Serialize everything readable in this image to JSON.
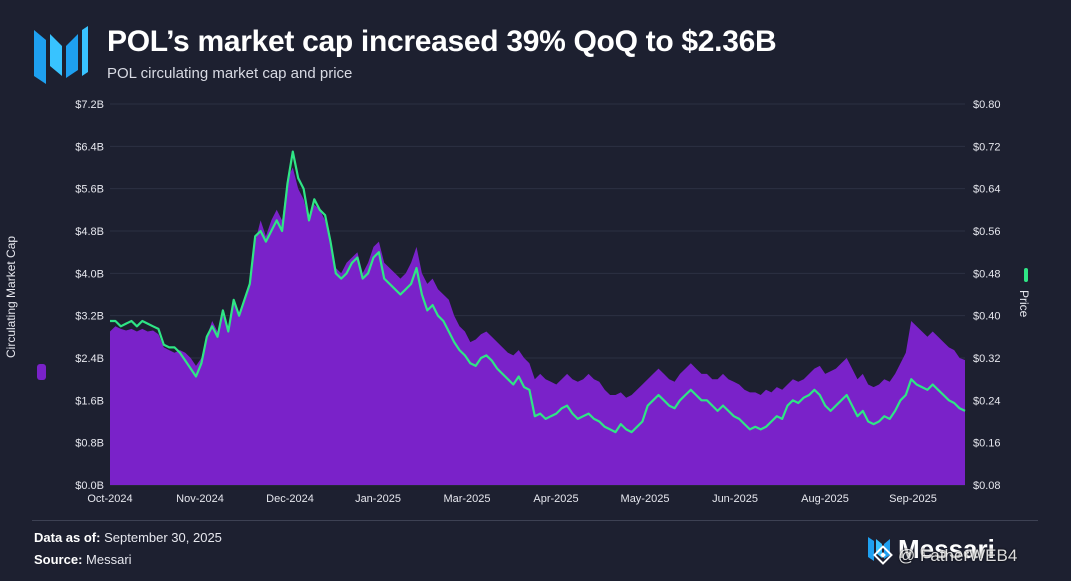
{
  "header": {
    "title": "POL’s market cap increased 39% QoQ to $2.36B",
    "subtitle": "POL circulating market cap and price"
  },
  "colors": {
    "background": "#1d2030",
    "market_cap_fill": "#7a22c9",
    "price_line": "#2fe585",
    "logo_blue": "#1ea0f0"
  },
  "chart_data": {
    "type": "area",
    "title": "POL’s market cap increased 39% QoQ to $2.36B",
    "subtitle": "POL circulating market cap and price",
    "ylabel_left": "Circulating Market Cap",
    "ylabel_right": "Price",
    "ylim_left": [
      0,
      7.2
    ],
    "ylim_right": [
      0.08,
      0.8
    ],
    "yticks_left": [
      "$0.0B",
      "$0.8B",
      "$1.6B",
      "$2.4B",
      "$3.2B",
      "$4.0B",
      "$4.8B",
      "$5.6B",
      "$6.4B",
      "$7.2B"
    ],
    "yticks_right": [
      "$0.08",
      "$0.16",
      "$0.24",
      "$0.32",
      "$0.40",
      "$0.48",
      "$0.56",
      "$0.64",
      "$0.72",
      "$0.80"
    ],
    "xticks": [
      "Oct-2024",
      "Nov-2024",
      "Dec-2024",
      "Jan-2025",
      "Mar-2025",
      "Apr-2025",
      "May-2025",
      "Jun-2025",
      "Aug-2025",
      "Sep-2025"
    ],
    "series": [
      {
        "name": "Circulating Market Cap",
        "type": "area",
        "axis": "left",
        "unit": "$B",
        "values": [
          2.9,
          3.0,
          2.95,
          2.92,
          2.95,
          2.9,
          2.95,
          2.9,
          2.92,
          2.85,
          2.6,
          2.55,
          2.5,
          2.55,
          2.5,
          2.4,
          2.25,
          2.4,
          2.8,
          3.1,
          2.9,
          3.2,
          2.95,
          3.5,
          3.2,
          3.5,
          3.8,
          4.6,
          5.0,
          4.7,
          5.0,
          5.2,
          5.0,
          5.8,
          6.0,
          5.6,
          5.4,
          5.0,
          5.3,
          5.2,
          5.0,
          4.6,
          4.1,
          4.0,
          4.2,
          4.3,
          4.4,
          4.0,
          4.2,
          4.5,
          4.6,
          4.2,
          4.1,
          4.0,
          3.9,
          4.0,
          4.2,
          4.5,
          4.0,
          3.8,
          3.9,
          3.7,
          3.6,
          3.5,
          3.2,
          3.0,
          2.9,
          2.7,
          2.75,
          2.85,
          2.9,
          2.8,
          2.7,
          2.6,
          2.5,
          2.45,
          2.55,
          2.4,
          2.3,
          2.0,
          2.1,
          2.0,
          1.95,
          1.9,
          2.0,
          2.1,
          2.0,
          1.95,
          2.0,
          2.1,
          2.0,
          1.95,
          1.8,
          1.7,
          1.7,
          1.75,
          1.65,
          1.7,
          1.8,
          1.9,
          2.0,
          2.1,
          2.2,
          2.1,
          2.0,
          1.95,
          2.1,
          2.2,
          2.3,
          2.2,
          2.1,
          2.1,
          2.0,
          2.0,
          2.1,
          2.0,
          1.95,
          1.9,
          1.8,
          1.75,
          1.75,
          1.7,
          1.8,
          1.75,
          1.85,
          1.8,
          1.9,
          2.0,
          1.95,
          2.0,
          2.1,
          2.2,
          2.25,
          2.1,
          2.15,
          2.2,
          2.3,
          2.4,
          2.2,
          2.0,
          2.1,
          1.9,
          1.85,
          1.9,
          2.0,
          1.95,
          2.1,
          2.3,
          2.5,
          3.1,
          3.0,
          2.9,
          2.8,
          2.9,
          2.8,
          2.7,
          2.6,
          2.55,
          2.4,
          2.36
        ],
        "last_value": 2.36
      },
      {
        "name": "Price",
        "type": "line",
        "axis": "right",
        "unit": "$",
        "values": [
          0.39,
          0.39,
          0.38,
          0.385,
          0.39,
          0.38,
          0.39,
          0.385,
          0.38,
          0.375,
          0.345,
          0.34,
          0.34,
          0.33,
          0.315,
          0.3,
          0.285,
          0.31,
          0.36,
          0.38,
          0.36,
          0.41,
          0.37,
          0.43,
          0.4,
          0.43,
          0.46,
          0.55,
          0.56,
          0.54,
          0.56,
          0.58,
          0.56,
          0.65,
          0.71,
          0.66,
          0.64,
          0.58,
          0.62,
          0.6,
          0.59,
          0.54,
          0.48,
          0.47,
          0.48,
          0.5,
          0.51,
          0.47,
          0.48,
          0.51,
          0.52,
          0.47,
          0.46,
          0.45,
          0.44,
          0.45,
          0.46,
          0.49,
          0.44,
          0.41,
          0.42,
          0.4,
          0.39,
          0.37,
          0.35,
          0.335,
          0.325,
          0.31,
          0.305,
          0.32,
          0.325,
          0.315,
          0.3,
          0.29,
          0.28,
          0.27,
          0.285,
          0.265,
          0.26,
          0.21,
          0.215,
          0.205,
          0.21,
          0.215,
          0.225,
          0.23,
          0.215,
          0.205,
          0.21,
          0.215,
          0.205,
          0.2,
          0.19,
          0.185,
          0.18,
          0.195,
          0.185,
          0.18,
          0.19,
          0.2,
          0.23,
          0.24,
          0.25,
          0.24,
          0.23,
          0.225,
          0.24,
          0.25,
          0.26,
          0.25,
          0.24,
          0.24,
          0.23,
          0.22,
          0.23,
          0.22,
          0.21,
          0.205,
          0.195,
          0.185,
          0.19,
          0.185,
          0.19,
          0.2,
          0.21,
          0.205,
          0.23,
          0.24,
          0.235,
          0.245,
          0.25,
          0.26,
          0.25,
          0.23,
          0.22,
          0.23,
          0.24,
          0.25,
          0.23,
          0.21,
          0.22,
          0.2,
          0.195,
          0.2,
          0.21,
          0.205,
          0.22,
          0.24,
          0.25,
          0.28,
          0.27,
          0.265,
          0.26,
          0.27,
          0.26,
          0.25,
          0.24,
          0.235,
          0.225,
          0.22
        ]
      }
    ]
  },
  "footer": {
    "data_as_of_label": "Data as of:",
    "data_as_of_value": "September 30, 2025",
    "source_label": "Source:",
    "source_value": "Messari",
    "brand": "Messari",
    "watermark": "@ FatherWEB4"
  }
}
